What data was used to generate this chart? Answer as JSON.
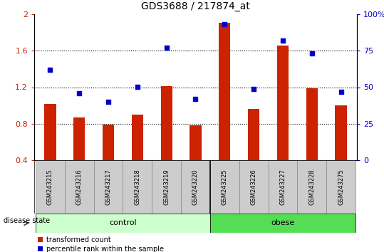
{
  "title": "GDS3688 / 217874_at",
  "samples": [
    "GSM243215",
    "GSM243216",
    "GSM243217",
    "GSM243218",
    "GSM243219",
    "GSM243220",
    "GSM243225",
    "GSM243226",
    "GSM243227",
    "GSM243228",
    "GSM243275"
  ],
  "transformed_count": [
    1.02,
    0.87,
    0.79,
    0.9,
    1.21,
    0.78,
    1.91,
    0.96,
    1.66,
    1.19,
    1.0
  ],
  "percentile_rank": [
    62,
    46,
    40,
    50,
    77,
    42,
    93,
    49,
    82,
    73,
    47
  ],
  "groups_control": [
    0,
    1,
    2,
    3,
    4,
    5
  ],
  "groups_obese": [
    6,
    7,
    8,
    9,
    10
  ],
  "bar_color": "#cc2200",
  "dot_color": "#0000cc",
  "ylim_left": [
    0.4,
    2.0
  ],
  "ylim_right": [
    0,
    100
  ],
  "yticks_left": [
    0.4,
    0.8,
    1.2,
    1.6,
    2.0
  ],
  "ytick_labels_left": [
    "0.4",
    "0.8",
    "1.2",
    "1.6",
    "2"
  ],
  "yticks_right": [
    0,
    25,
    50,
    75,
    100
  ],
  "ytick_labels_right": [
    "0",
    "25",
    "50",
    "75",
    "100%"
  ],
  "gridlines": [
    0.8,
    1.2,
    1.6
  ],
  "control_color": "#ccffcc",
  "obese_color": "#55dd55",
  "label_color_left": "#cc2200",
  "label_color_right": "#0000cc",
  "legend_red_label": "transformed count",
  "legend_blue_label": "percentile rank within the sample",
  "disease_state_label": "disease state",
  "bar_width": 0.4,
  "dot_size": 22,
  "grid_color": "black",
  "grid_linestyle": ":",
  "grid_linewidth": 0.8,
  "label_bg_color": "#cccccc",
  "label_edge_color": "#888888"
}
